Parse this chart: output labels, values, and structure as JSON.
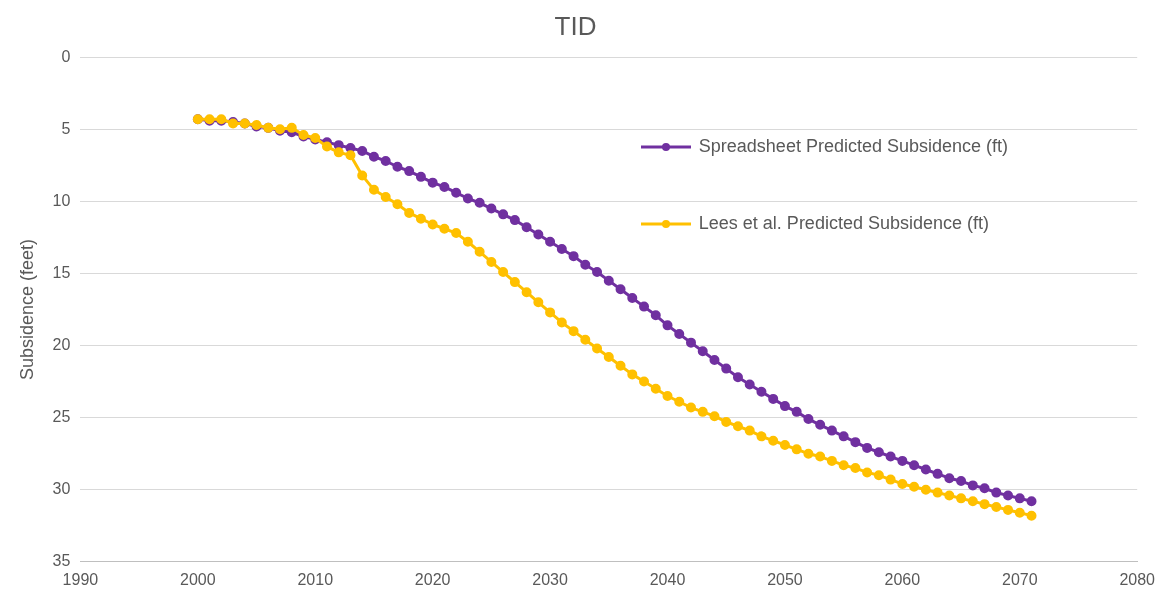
{
  "chart_data": {
    "type": "line",
    "title": "TID",
    "ylabel": "Subsidence (feet)",
    "x": [
      2000,
      2001,
      2002,
      2003,
      2004,
      2005,
      2006,
      2007,
      2008,
      2009,
      2010,
      2011,
      2012,
      2013,
      2014,
      2015,
      2016,
      2017,
      2018,
      2019,
      2020,
      2021,
      2022,
      2023,
      2024,
      2025,
      2026,
      2027,
      2028,
      2029,
      2030,
      2031,
      2032,
      2033,
      2034,
      2035,
      2036,
      2037,
      2038,
      2039,
      2040,
      2041,
      2042,
      2043,
      2044,
      2045,
      2046,
      2047,
      2048,
      2049,
      2050,
      2051,
      2052,
      2053,
      2054,
      2055,
      2056,
      2057,
      2058,
      2059,
      2060,
      2061,
      2062,
      2063,
      2064,
      2065,
      2066,
      2067,
      2068,
      2069,
      2070,
      2071
    ],
    "series": [
      {
        "name": "Spreadsheet Predicted Subsidence (ft)",
        "color": "#7030a0",
        "values": [
          4.3,
          4.4,
          4.4,
          4.5,
          4.6,
          4.8,
          4.9,
          5.1,
          5.2,
          5.5,
          5.7,
          5.9,
          6.1,
          6.3,
          6.5,
          6.9,
          7.2,
          7.6,
          7.9,
          8.3,
          8.7,
          9.0,
          9.4,
          9.8,
          10.1,
          10.5,
          10.9,
          11.3,
          11.8,
          12.3,
          12.8,
          13.3,
          13.8,
          14.4,
          14.9,
          15.5,
          16.1,
          16.7,
          17.3,
          17.9,
          18.6,
          19.2,
          19.8,
          20.4,
          21.0,
          21.6,
          22.2,
          22.7,
          23.2,
          23.7,
          24.2,
          24.6,
          25.1,
          25.5,
          25.9,
          26.3,
          26.7,
          27.1,
          27.4,
          27.7,
          28.0,
          28.3,
          28.6,
          28.9,
          29.2,
          29.4,
          29.7,
          29.9,
          30.2,
          30.4,
          30.6,
          30.8
        ]
      },
      {
        "name": "Lees et al. Predicted Subsidence (ft)",
        "color": "#ffc000",
        "values": [
          4.3,
          4.3,
          4.3,
          4.6,
          4.6,
          4.7,
          4.9,
          5.0,
          4.9,
          5.4,
          5.6,
          6.2,
          6.6,
          6.8,
          8.2,
          9.2,
          9.7,
          10.2,
          10.8,
          11.2,
          11.6,
          11.9,
          12.2,
          12.8,
          13.5,
          14.2,
          14.9,
          15.6,
          16.3,
          17.0,
          17.7,
          18.4,
          19.0,
          19.6,
          20.2,
          20.8,
          21.4,
          22.0,
          22.5,
          23.0,
          23.5,
          23.9,
          24.3,
          24.6,
          24.9,
          25.3,
          25.6,
          25.9,
          26.3,
          26.6,
          26.9,
          27.2,
          27.5,
          27.7,
          28.0,
          28.3,
          28.5,
          28.8,
          29.0,
          29.3,
          29.6,
          29.8,
          30.0,
          30.2,
          30.4,
          30.6,
          30.8,
          31.0,
          31.2,
          31.4,
          31.6,
          31.8
        ]
      }
    ],
    "xlim": [
      1990,
      2080
    ],
    "xticks": [
      1990,
      2000,
      2010,
      2020,
      2030,
      2040,
      2050,
      2060,
      2070,
      2080
    ],
    "ylim": [
      35,
      0
    ],
    "yticks": [
      0,
      5,
      10,
      15,
      20,
      25,
      30,
      35
    ],
    "grid": "y",
    "legend": "top right",
    "marker": "circle",
    "line_style": "solid"
  }
}
